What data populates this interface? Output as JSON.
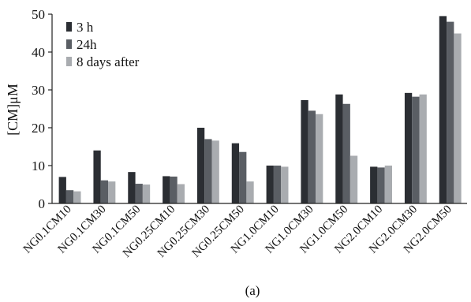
{
  "chart_data": {
    "type": "bar",
    "categories": [
      "NG0.1CM10",
      "NG0.1CM30",
      "NG0.1CM50",
      "NG0.25CM10",
      "NG0.25CM30",
      "NG0.25CM50",
      "NG1.0CM10",
      "NG1.0CM30",
      "NG1.0CM50",
      "NG2.0CM10",
      "NG2.0CM30",
      "NG2.0CM50"
    ],
    "series": [
      {
        "name": "3 h",
        "color": "#2b2e33",
        "values": [
          7.0,
          14.0,
          8.3,
          7.2,
          20.0,
          15.9,
          10.0,
          27.3,
          28.8,
          9.7,
          29.2,
          49.5
        ]
      },
      {
        "name": "24h",
        "color": "#5a5e64",
        "values": [
          3.5,
          6.1,
          5.2,
          7.1,
          17.0,
          13.6,
          10.0,
          24.5,
          26.3,
          9.5,
          28.2,
          48.0
        ]
      },
      {
        "name": "8 days after",
        "color": "#a9acb0",
        "values": [
          3.2,
          5.8,
          5.0,
          5.1,
          16.6,
          5.8,
          9.7,
          23.6,
          12.6,
          10.0,
          28.8,
          44.9
        ]
      }
    ],
    "ylabel": "[CM]μM",
    "ylim": [
      0,
      50
    ],
    "yticks": [
      0,
      10,
      20,
      30,
      40,
      50
    ],
    "grid": false,
    "legend_position": "top-left",
    "caption": "(a)"
  }
}
